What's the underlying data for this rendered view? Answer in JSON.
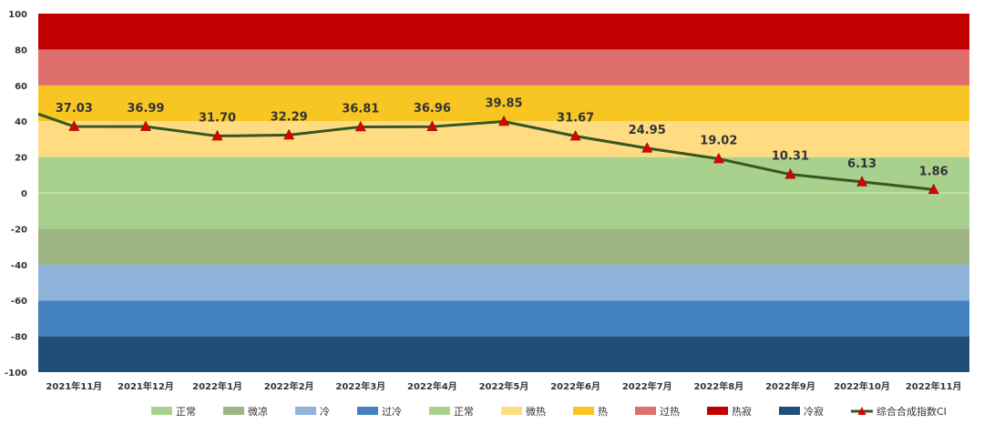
{
  "chart_data": {
    "type": "line",
    "title": "",
    "xlabel": "",
    "ylabel": "",
    "ylim": [
      -100,
      100
    ],
    "y_ticks": [
      100,
      80,
      60,
      40,
      20,
      0,
      -20,
      -40,
      -60,
      -80,
      -100
    ],
    "grid": false,
    "legend_position": "bottom",
    "categories": [
      "2021年11月",
      "2021年12月",
      "2022年1月",
      "2022年2月",
      "2022年3月",
      "2022年4月",
      "2022年5月",
      "2022年6月",
      "2022年7月",
      "2022年8月",
      "2022年9月",
      "2022年10月",
      "2022年11月"
    ],
    "bands": [
      {
        "name": "冷寂",
        "from": -100,
        "to": -80,
        "color": "#1F4E79"
      },
      {
        "name": "过冷",
        "from": -80,
        "to": -60,
        "color": "#4381C1"
      },
      {
        "name": "冷",
        "from": -60,
        "to": -40,
        "color": "#8FB4DA"
      },
      {
        "name": "微凉",
        "from": -40,
        "to": -20,
        "color": "#9DB683"
      },
      {
        "name": "正常",
        "from": -20,
        "to": 20,
        "color": "#A8D18D"
      },
      {
        "name": "微热",
        "from": 20,
        "to": 40,
        "color": "#FFDC82"
      },
      {
        "name": "热",
        "from": 40,
        "to": 60,
        "color": "#F8C622"
      },
      {
        "name": "过热",
        "from": 60,
        "to": 80,
        "color": "#DF6F6C"
      },
      {
        "name": "热寂",
        "from": 80,
        "to": 100,
        "color": "#C00000"
      }
    ],
    "legend": [
      {
        "name": "正常",
        "color": "#A8D18D",
        "kind": "box"
      },
      {
        "name": "微凉",
        "color": "#9DB683",
        "kind": "box"
      },
      {
        "name": "冷",
        "color": "#8FB4DA",
        "kind": "box"
      },
      {
        "name": "过冷",
        "color": "#4381C1",
        "kind": "box"
      },
      {
        "name": "正常",
        "color": "#A8D18D",
        "kind": "box"
      },
      {
        "name": "微热",
        "color": "#FFDC82",
        "kind": "box"
      },
      {
        "name": "热",
        "color": "#F8C622",
        "kind": "box"
      },
      {
        "name": "过热",
        "color": "#DF6F6C",
        "kind": "box"
      },
      {
        "name": "热寂",
        "color": "#C00000",
        "kind": "box"
      },
      {
        "name": "冷寂",
        "color": "#1F4E79",
        "kind": "box"
      },
      {
        "name": "综合合成指数CI",
        "color": "#375623",
        "kind": "line"
      }
    ],
    "series": [
      {
        "name": "综合合成指数CI",
        "line_color": "#375623",
        "marker_color": "#E00000",
        "marker": "triangle",
        "values": [
          37.03,
          36.99,
          31.7,
          32.29,
          36.81,
          36.96,
          39.85,
          31.67,
          24.95,
          19.02,
          10.31,
          6.13,
          1.86
        ],
        "labels": [
          "37.03",
          "36.99",
          "31.70",
          "32.29",
          "36.81",
          "36.96",
          "39.85",
          "31.67",
          "24.95",
          "19.02",
          "10.31",
          "6.13",
          "1.86"
        ],
        "lead_in_value": 44
      }
    ]
  }
}
